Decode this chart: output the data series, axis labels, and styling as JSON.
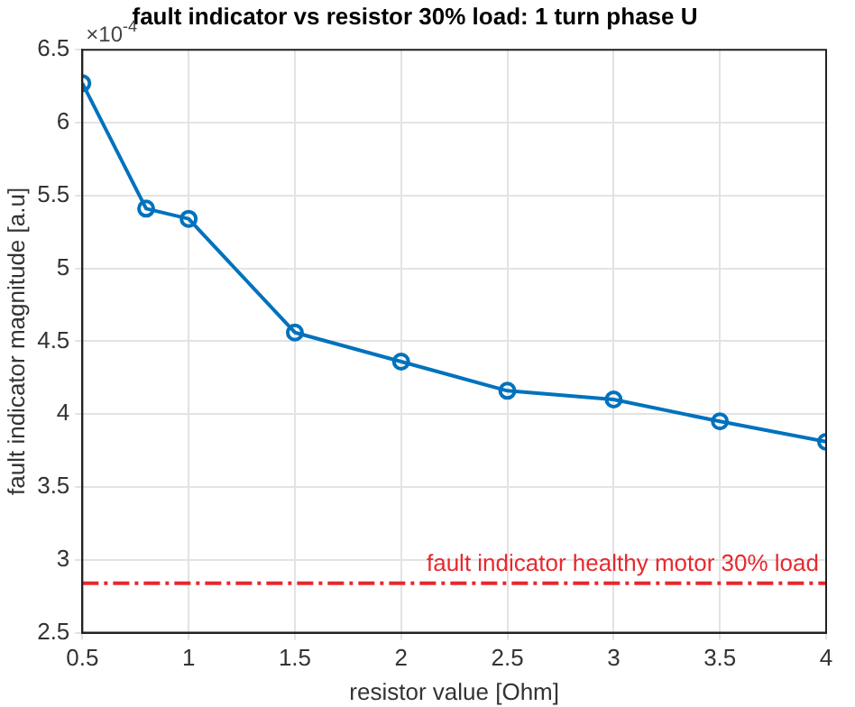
{
  "chart_data": {
    "type": "line",
    "title": "fault indicator vs resistor 30% load: 1 turn phase U",
    "xlabel": "resistor value [Ohm]",
    "ylabel": "fault indicator magnitude [a.u]",
    "annotations": [
      "×10$^{-4}$"
    ],
    "x": [
      0.5,
      0.8,
      1.0,
      1.5,
      2.0,
      2.5,
      3.0,
      3.5,
      4.0
    ],
    "series": [
      {
        "color": "#0072bd",
        "values": [
          6.27,
          5.41,
          5.34,
          4.56,
          4.36,
          4.16,
          4.1,
          3.95,
          3.81
        ]
      }
    ],
    "xlim": [
      0.5,
      4
    ],
    "xticks": [
      0.5,
      1,
      1.5,
      2,
      2.5,
      3,
      3.5,
      4
    ],
    "ylim": [
      2.5,
      6.5
    ],
    "yticks": [
      2.5,
      3,
      3.5,
      4,
      4.5,
      5,
      5.5,
      6,
      6.5
    ],
    "ref_lines": [
      {
        "axis": "y",
        "value": 2.84,
        "label": "fault indicator healthy motor 30% load",
        "color": "#e8282e",
        "line_style": "dashdot"
      }
    ],
    "grid": true,
    "legend": false,
    "marker": "circle",
    "line_style": "solid"
  }
}
